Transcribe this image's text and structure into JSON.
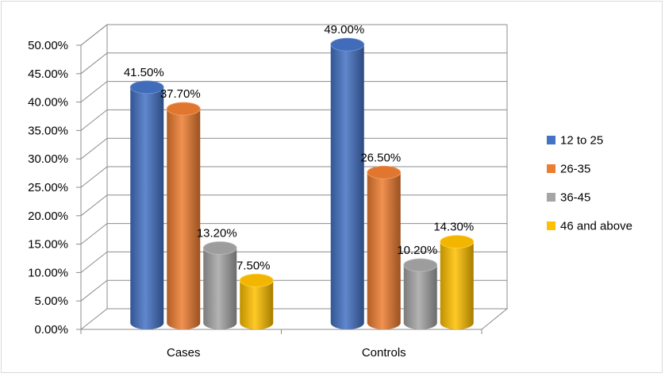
{
  "chart_data": {
    "type": "bar",
    "style": "3d-cylinder",
    "categories": [
      "Cases",
      "Controls"
    ],
    "series": [
      {
        "name": "12 to 25",
        "values": [
          41.5,
          49.0
        ],
        "color": "#4472c4",
        "labels": [
          "41.50%",
          "49.00%"
        ]
      },
      {
        "name": "26-35",
        "values": [
          37.7,
          26.5
        ],
        "color": "#ed7d31",
        "labels": [
          "37.70%",
          "26.50%"
        ]
      },
      {
        "name": "36-45",
        "values": [
          13.2,
          10.2
        ],
        "color": "#a5a5a5",
        "labels": [
          "13.20%",
          "10.20%"
        ]
      },
      {
        "name": "46 and above",
        "values": [
          7.5,
          14.3
        ],
        "color": "#ffc000",
        "labels": [
          "7.50%",
          "14.30%"
        ]
      }
    ],
    "ylim": [
      0,
      50
    ],
    "yticks": [
      "0.00%",
      "5.00%",
      "10.00%",
      "15.00%",
      "20.00%",
      "25.00%",
      "30.00%",
      "35.00%",
      "40.00%",
      "45.00%",
      "50.00%"
    ],
    "grid": true,
    "legend_position": "right"
  }
}
